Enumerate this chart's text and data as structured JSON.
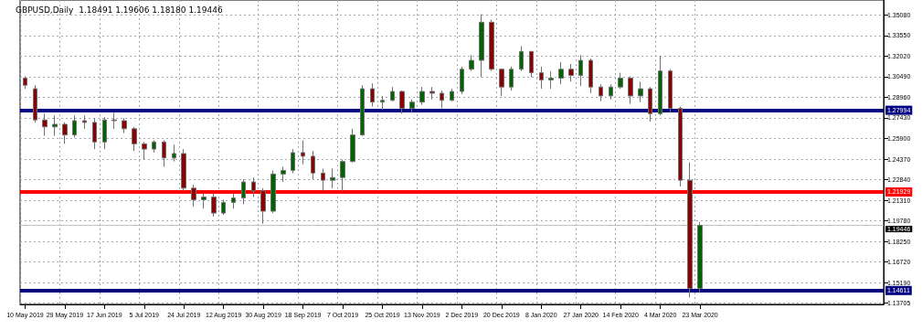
{
  "chart_data": {
    "type": "candlestick",
    "title": "GBPUSD,Daily  1.18491 1.19606 1.18180 1.19446",
    "categories": [
      "10 May 2019",
      null,
      null,
      null,
      "29 May 2019",
      null,
      null,
      null,
      "17 Jun 2019",
      null,
      null,
      null,
      "5 Jul 2019",
      null,
      null,
      null,
      "24 Jul 2019",
      null,
      null,
      null,
      "12 Aug 2019",
      null,
      null,
      null,
      "30 Aug 2019",
      null,
      null,
      null,
      "18 Sep 2019",
      null,
      null,
      null,
      "7 Oct 2019",
      null,
      null,
      null,
      "25 Oct 2019",
      null,
      null,
      null,
      "13 Nov 2019",
      null,
      null,
      null,
      "2 Dec 2019",
      null,
      null,
      null,
      "20 Dec 2019",
      null,
      null,
      null,
      "8 Jan 2020",
      null,
      null,
      null,
      "27 Jan 2020",
      null,
      null,
      null,
      "14 Feb 2020",
      null,
      null,
      null,
      "4 Mar 2020",
      null,
      null,
      null,
      "23 Mar 2020",
      null,
      null,
      null,
      null,
      null,
      null,
      null,
      null,
      null,
      null,
      null,
      null,
      null,
      null,
      null,
      null,
      null,
      null
    ],
    "ohlc": [
      [
        1.3038,
        1.3051,
        1.2959,
        1.2985
      ],
      [
        1.2959,
        1.2985,
        1.2709,
        1.2728
      ],
      [
        1.2728,
        1.2774,
        1.261,
        1.2676
      ],
      [
        1.2676,
        1.2761,
        1.261,
        1.2695
      ],
      [
        1.2695,
        1.2709,
        1.255,
        1.2616
      ],
      [
        1.2616,
        1.2761,
        1.2597,
        1.2722
      ],
      [
        1.2722,
        1.2761,
        1.2662,
        1.2709
      ],
      [
        1.2709,
        1.2741,
        1.2511,
        1.2564
      ],
      [
        1.2564,
        1.2748,
        1.2511,
        1.2728
      ],
      [
        1.2728,
        1.2781,
        1.2662,
        1.2722
      ],
      [
        1.2722,
        1.2741,
        1.2629,
        1.2662
      ],
      [
        1.2662,
        1.2676,
        1.2498,
        1.255
      ],
      [
        1.255,
        1.2564,
        1.2432,
        1.2511
      ],
      [
        1.2511,
        1.2577,
        1.2485,
        1.2564
      ],
      [
        1.2564,
        1.2577,
        1.2379,
        1.2445
      ],
      [
        1.2445,
        1.2544,
        1.2419,
        1.2478
      ],
      [
        1.2478,
        1.2511,
        1.2201,
        1.2221
      ],
      [
        1.2221,
        1.2247,
        1.2083,
        1.2135
      ],
      [
        1.2135,
        1.2181,
        1.2069,
        1.2155
      ],
      [
        1.2155,
        1.2181,
        1.201,
        1.2036
      ],
      [
        1.2036,
        1.2135,
        1.2023,
        1.2115
      ],
      [
        1.2115,
        1.2181,
        1.2069,
        1.2148
      ],
      [
        1.2148,
        1.2287,
        1.2102,
        1.2267
      ],
      [
        1.2267,
        1.23,
        1.2155,
        1.2201
      ],
      [
        1.2201,
        1.2221,
        1.1957,
        1.205
      ],
      [
        1.205,
        1.2353,
        1.2036,
        1.2326
      ],
      [
        1.2326,
        1.2379,
        1.2267,
        1.2353
      ],
      [
        1.2353,
        1.2511,
        1.2333,
        1.2485
      ],
      [
        1.2485,
        1.2577,
        1.2399,
        1.2458
      ],
      [
        1.2458,
        1.2498,
        1.2287,
        1.2333
      ],
      [
        1.2333,
        1.2366,
        1.2201,
        1.228
      ],
      [
        1.228,
        1.2366,
        1.2221,
        1.23
      ],
      [
        1.23,
        1.2432,
        1.2201,
        1.2419
      ],
      [
        1.2419,
        1.2662,
        1.2412,
        1.2616
      ],
      [
        1.2616,
        1.2985,
        1.261,
        1.2959
      ],
      [
        1.2959,
        1.2999,
        1.2827,
        1.286
      ],
      [
        1.286,
        1.2906,
        1.2801,
        1.2873
      ],
      [
        1.2873,
        1.2972,
        1.2867,
        1.2939
      ],
      [
        1.2939,
        1.2946,
        1.2774,
        1.2814
      ],
      [
        1.2814,
        1.288,
        1.2781,
        1.286
      ],
      [
        1.286,
        1.2972,
        1.284,
        1.2939
      ],
      [
        1.2939,
        1.2972,
        1.288,
        1.2926
      ],
      [
        1.2926,
        1.2946,
        1.2814,
        1.2873
      ],
      [
        1.2873,
        1.2959,
        1.2867,
        1.2939
      ],
      [
        1.2939,
        1.3124,
        1.2919,
        1.3104
      ],
      [
        1.3104,
        1.3209,
        1.3091,
        1.317
      ],
      [
        1.317,
        1.3513,
        1.3045,
        1.3453
      ],
      [
        1.3453,
        1.3473,
        1.3091,
        1.3104
      ],
      [
        1.3104,
        1.3111,
        1.2906,
        1.2972
      ],
      [
        1.2972,
        1.3124,
        1.2946,
        1.3104
      ],
      [
        1.3104,
        1.3275,
        1.3091,
        1.3236
      ],
      [
        1.3236,
        1.3236,
        1.3045,
        1.3078
      ],
      [
        1.3078,
        1.3124,
        1.2959,
        1.3025
      ],
      [
        1.3025,
        1.3091,
        1.2959,
        1.3038
      ],
      [
        1.3038,
        1.3157,
        1.2992,
        1.3104
      ],
      [
        1.3104,
        1.3143,
        1.3012,
        1.3058
      ],
      [
        1.3058,
        1.3209,
        1.2979,
        1.317
      ],
      [
        1.317,
        1.3183,
        1.2926,
        1.2972
      ],
      [
        1.2972,
        1.2992,
        1.2867,
        1.2906
      ],
      [
        1.2906,
        1.2992,
        1.288,
        1.2972
      ],
      [
        1.2972,
        1.3078,
        1.2959,
        1.3038
      ],
      [
        1.3038,
        1.3051,
        1.2847,
        1.2906
      ],
      [
        1.2906,
        1.3012,
        1.286,
        1.2959
      ],
      [
        1.2959,
        1.2972,
        1.2715,
        1.2774
      ],
      [
        1.2774,
        1.3203,
        1.2761,
        1.3091
      ],
      [
        1.3091,
        1.3104,
        1.2781,
        1.2814
      ],
      [
        1.2814,
        1.2827,
        1.2234,
        1.228
      ],
      [
        1.228,
        1.2412,
        1.141,
        1.1476
      ],
      [
        1.1476,
        1.197,
        1.1443,
        1.19446
      ],
      null,
      null,
      null,
      null,
      null,
      null,
      null,
      null,
      null,
      null,
      null,
      null,
      null,
      null,
      null,
      null,
      null,
      null
    ],
    "ylim": [
      1.1358,
      1.3618
    ],
    "yticks": [
      {
        "value": 1.3508,
        "label": "1.35080"
      },
      {
        "value": 1.3355,
        "label": "1.33550"
      },
      {
        "value": 1.3202,
        "label": "1.32020"
      },
      {
        "value": 1.3049,
        "label": "1.30490"
      },
      {
        "value": 1.2896,
        "label": "1.28960"
      },
      {
        "value": 1.2743,
        "label": "1.27430"
      },
      {
        "value": 1.259,
        "label": "1.25900"
      },
      {
        "value": 1.2437,
        "label": "1.24370"
      },
      {
        "value": 1.2284,
        "label": "1.22840"
      },
      {
        "value": 1.2131,
        "label": "1.21310"
      },
      {
        "value": 1.1978,
        "label": "1.19780"
      },
      {
        "value": 1.1825,
        "label": "1.18250"
      },
      {
        "value": 1.1672,
        "label": "1.16720"
      },
      {
        "value": 1.1519,
        "label": "1.15190"
      },
      {
        "value": 1.13705,
        "label": "1.13705"
      }
    ],
    "ref_lines": [
      {
        "axis": "y",
        "value": 1.27994,
        "label": "1.27994",
        "color": "#000080"
      },
      {
        "axis": "y",
        "value": 1.21929,
        "label": "1.21929",
        "color": "#ff0000"
      },
      {
        "axis": "y",
        "value": 1.14611,
        "label": "1.14611",
        "color": "#000080"
      },
      {
        "axis": "y",
        "value": 1.19446,
        "label": "1.19446",
        "color": "#c0c0c0"
      }
    ],
    "grid": true
  }
}
